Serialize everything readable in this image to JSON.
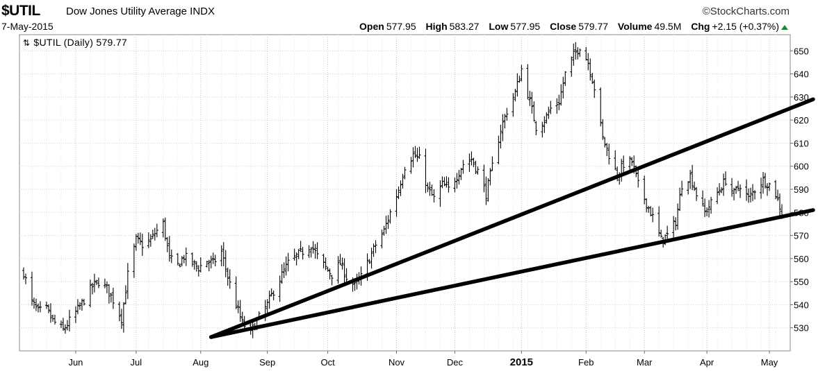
{
  "header": {
    "symbol": "$UTIL",
    "name": "Dow Jones Utility Average",
    "exchange": "INDX",
    "brand": "StockCharts.com",
    "brand_icon": "copyright-icon",
    "date": "7-May-2015",
    "open_label": "Open",
    "open": "577.95",
    "high_label": "High",
    "high": "583.27",
    "low_label": "Low",
    "low": "577.95",
    "close_label": "Close",
    "close": "579.77",
    "volume_label": "Volume",
    "volume": "49.5M",
    "chg_label": "Chg",
    "chg": "+2.15 (+0.37%)",
    "chg_icon": "up-arrow-icon",
    "chg_color": "#1a8a2e"
  },
  "legend": {
    "icon": "up-down-arrows-icon",
    "label": "$UTIL (Daily) 579.77"
  },
  "chart_data": {
    "type": "ohlc",
    "title": "",
    "xlabel": "",
    "ylabel": "",
    "ylim": [
      520,
      657
    ],
    "y_ticks": [
      530,
      540,
      550,
      560,
      570,
      580,
      590,
      600,
      610,
      620,
      630,
      640,
      650
    ],
    "y_axis_side": "right",
    "grid": true,
    "x_ticks": [
      {
        "label": "Jun",
        "date": "2014-06-02"
      },
      {
        "label": "Jul",
        "date": "2014-07-01"
      },
      {
        "label": "Aug",
        "date": "2014-08-01"
      },
      {
        "label": "Sep",
        "date": "2014-09-02"
      },
      {
        "label": "Oct",
        "date": "2014-10-01"
      },
      {
        "label": "Nov",
        "date": "2014-11-03"
      },
      {
        "label": "Dec",
        "date": "2014-12-01"
      },
      {
        "label": "2015",
        "date": "2015-01-02",
        "bold": true
      },
      {
        "label": "Feb",
        "date": "2015-02-02"
      },
      {
        "label": "Mar",
        "date": "2015-03-02"
      },
      {
        "label": "Apr",
        "date": "2015-04-01"
      },
      {
        "label": "May",
        "date": "2015-05-01"
      }
    ],
    "series": [
      {
        "points": [
          [
            "2014-05-08",
            554
          ],
          [
            "2014-05-12",
            541
          ],
          [
            "2014-05-15",
            537
          ],
          [
            "2014-05-19",
            538
          ],
          [
            "2014-05-22",
            533
          ],
          [
            "2014-05-27",
            529
          ],
          [
            "2014-05-30",
            533
          ],
          [
            "2014-06-03",
            538
          ],
          [
            "2014-06-06",
            542
          ],
          [
            "2014-06-10",
            548
          ],
          [
            "2014-06-13",
            550
          ],
          [
            "2014-06-17",
            547
          ],
          [
            "2014-06-20",
            542
          ],
          [
            "2014-06-24",
            534
          ],
          [
            "2014-06-27",
            553
          ],
          [
            "2014-07-01",
            568
          ],
          [
            "2014-07-04",
            566
          ],
          [
            "2014-07-08",
            568
          ],
          [
            "2014-07-10",
            571
          ],
          [
            "2014-07-14",
            575
          ],
          [
            "2014-07-17",
            560
          ],
          [
            "2014-07-21",
            557
          ],
          [
            "2014-07-24",
            561
          ],
          [
            "2014-07-28",
            558
          ],
          [
            "2014-07-31",
            556
          ],
          [
            "2014-08-04",
            559
          ],
          [
            "2014-08-07",
            558
          ],
          [
            "2014-08-11",
            563
          ],
          [
            "2014-08-14",
            552
          ],
          [
            "2014-08-18",
            540
          ],
          [
            "2014-08-21",
            532
          ],
          [
            "2014-08-25",
            528
          ],
          [
            "2014-08-28",
            533
          ],
          [
            "2014-09-02",
            540
          ],
          [
            "2014-09-05",
            546
          ],
          [
            "2014-09-09",
            553
          ],
          [
            "2014-09-12",
            558
          ],
          [
            "2014-09-16",
            561
          ],
          [
            "2014-09-19",
            563
          ],
          [
            "2014-09-23",
            566
          ],
          [
            "2014-09-26",
            561
          ],
          [
            "2014-09-30",
            556
          ],
          [
            "2014-10-03",
            553
          ],
          [
            "2014-10-07",
            558
          ],
          [
            "2014-10-10",
            552
          ],
          [
            "2014-10-14",
            548
          ],
          [
            "2014-10-17",
            552
          ],
          [
            "2014-10-21",
            560
          ],
          [
            "2014-10-24",
            566
          ],
          [
            "2014-10-28",
            572
          ],
          [
            "2014-10-31",
            580
          ],
          [
            "2014-11-04",
            590
          ],
          [
            "2014-11-07",
            600
          ],
          [
            "2014-11-11",
            605
          ],
          [
            "2014-11-14",
            603
          ],
          [
            "2014-11-18",
            590
          ],
          [
            "2014-11-21",
            586
          ],
          [
            "2014-11-25",
            592
          ],
          [
            "2014-11-28",
            590
          ],
          [
            "2014-12-02",
            596
          ],
          [
            "2014-12-05",
            601
          ],
          [
            "2014-12-09",
            603
          ],
          [
            "2014-12-12",
            598
          ],
          [
            "2014-12-16",
            588
          ],
          [
            "2014-12-19",
            600
          ],
          [
            "2014-12-23",
            616
          ],
          [
            "2014-12-26",
            624
          ],
          [
            "2014-12-30",
            632
          ],
          [
            "2015-01-02",
            642
          ],
          [
            "2015-01-06",
            628
          ],
          [
            "2015-01-09",
            617
          ],
          [
            "2015-01-13",
            620
          ],
          [
            "2015-01-16",
            625
          ],
          [
            "2015-01-20",
            628
          ],
          [
            "2015-01-23",
            640
          ],
          [
            "2015-01-27",
            648
          ],
          [
            "2015-01-30",
            652
          ],
          [
            "2015-02-03",
            645
          ],
          [
            "2015-02-06",
            634
          ],
          [
            "2015-02-10",
            612
          ],
          [
            "2015-02-13",
            605
          ],
          [
            "2015-02-17",
            596
          ],
          [
            "2015-02-20",
            601
          ],
          [
            "2015-02-24",
            602
          ],
          [
            "2015-02-27",
            592
          ],
          [
            "2015-03-03",
            584
          ],
          [
            "2015-03-06",
            578
          ],
          [
            "2015-03-10",
            568
          ],
          [
            "2015-03-13",
            570
          ],
          [
            "2015-03-17",
            576
          ],
          [
            "2015-03-20",
            592
          ],
          [
            "2015-03-24",
            596
          ],
          [
            "2015-03-27",
            588
          ],
          [
            "2015-03-31",
            580
          ],
          [
            "2015-04-03",
            584
          ],
          [
            "2015-04-07",
            590
          ],
          [
            "2015-04-10",
            594
          ],
          [
            "2015-04-14",
            588
          ],
          [
            "2015-04-17",
            592
          ],
          [
            "2015-04-21",
            586
          ],
          [
            "2015-04-24",
            590
          ],
          [
            "2015-04-28",
            594
          ],
          [
            "2015-05-01",
            592
          ],
          [
            "2015-05-04",
            588
          ],
          [
            "2015-05-07",
            579.77
          ]
        ]
      }
    ],
    "trendlines": [
      {
        "from": [
          "2014-08-06",
          526
        ],
        "to": [
          "2015-05-22",
          629
        ]
      },
      {
        "from": [
          "2014-08-06",
          526
        ],
        "to": [
          "2015-05-22",
          581
        ]
      }
    ]
  }
}
